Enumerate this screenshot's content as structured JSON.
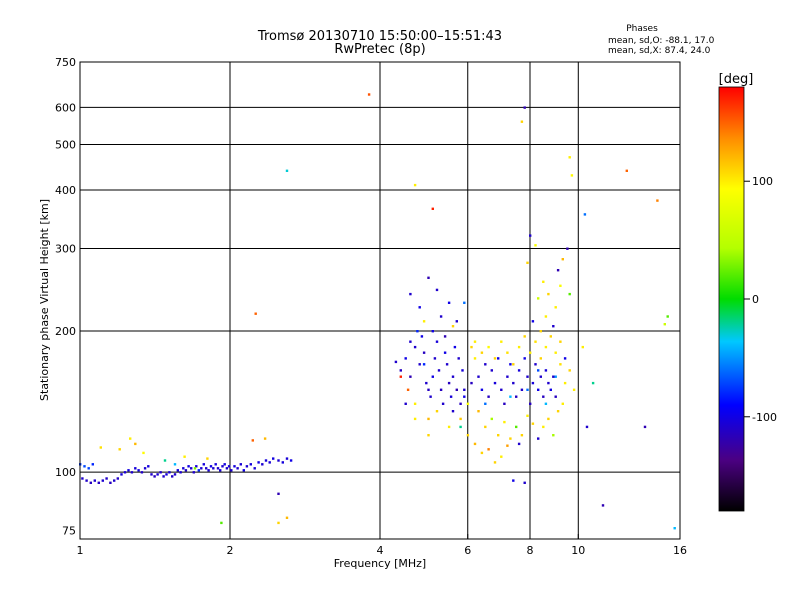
{
  "chart_data": {
    "type": "scatter",
    "title_lines": [
      "Tromsø 20130710 15:50:00–15:51:43",
      "RwPretec (8p)"
    ],
    "phases": {
      "heading": "Phases",
      "line_o": "mean, sd,O: -88.1, 17.0",
      "line_x": "mean, sd,X:  87.4, 24.0"
    },
    "xlabel": "Frequency [MHz]",
    "ylabel": "Stationary phase Virtual Height [km]",
    "x_scale": "log",
    "y_scale": "log",
    "xlim": [
      1,
      16
    ],
    "ylim": [
      72,
      750
    ],
    "x_ticks": [
      1,
      2,
      4,
      6,
      8,
      10,
      16
    ],
    "y_ticks": [
      75,
      100,
      200,
      300,
      400,
      500,
      600,
      750
    ],
    "grid": true,
    "colorbar": {
      "label": "[deg]",
      "range": [
        -180,
        180
      ],
      "ticks": [
        100,
        0,
        -100
      ]
    },
    "points": [
      {
        "x": 1.0,
        "y": 104,
        "c": -75
      },
      {
        "x": 1.02,
        "y": 103,
        "c": -70
      },
      {
        "x": 1.04,
        "y": 102,
        "c": -72
      },
      {
        "x": 1.06,
        "y": 104,
        "c": -80
      },
      {
        "x": 1.01,
        "y": 97,
        "c": -110
      },
      {
        "x": 1.03,
        "y": 96,
        "c": -112
      },
      {
        "x": 1.05,
        "y": 95,
        "c": -115
      },
      {
        "x": 1.07,
        "y": 96,
        "c": -110
      },
      {
        "x": 1.09,
        "y": 95,
        "c": -113
      },
      {
        "x": 1.11,
        "y": 96,
        "c": -108
      },
      {
        "x": 1.13,
        "y": 97,
        "c": -112
      },
      {
        "x": 1.15,
        "y": 95,
        "c": -115
      },
      {
        "x": 1.17,
        "y": 96,
        "c": -110
      },
      {
        "x": 1.19,
        "y": 97,
        "c": -112
      },
      {
        "x": 1.21,
        "y": 99,
        "c": -105
      },
      {
        "x": 1.23,
        "y": 100,
        "c": -108
      },
      {
        "x": 1.25,
        "y": 101,
        "c": -102
      },
      {
        "x": 1.27,
        "y": 100,
        "c": -110
      },
      {
        "x": 1.29,
        "y": 102,
        "c": -105
      },
      {
        "x": 1.31,
        "y": 101,
        "c": -100
      },
      {
        "x": 1.33,
        "y": 100,
        "c": -112
      },
      {
        "x": 1.35,
        "y": 102,
        "c": -108
      },
      {
        "x": 1.37,
        "y": 103,
        "c": -104
      },
      {
        "x": 1.39,
        "y": 99,
        "c": -110
      },
      {
        "x": 1.41,
        "y": 98,
        "c": -115
      },
      {
        "x": 1.43,
        "y": 99,
        "c": -108
      },
      {
        "x": 1.45,
        "y": 100,
        "c": -112
      },
      {
        "x": 1.47,
        "y": 98,
        "c": -110
      },
      {
        "x": 1.49,
        "y": 99,
        "c": -105
      },
      {
        "x": 1.51,
        "y": 100,
        "c": -108
      },
      {
        "x": 1.53,
        "y": 98,
        "c": -112
      },
      {
        "x": 1.55,
        "y": 99,
        "c": -110
      },
      {
        "x": 1.57,
        "y": 101,
        "c": -104
      },
      {
        "x": 1.59,
        "y": 100,
        "c": -108
      },
      {
        "x": 1.61,
        "y": 102,
        "c": -106
      },
      {
        "x": 1.63,
        "y": 101,
        "c": -110
      },
      {
        "x": 1.65,
        "y": 103,
        "c": -102
      },
      {
        "x": 1.67,
        "y": 102,
        "c": -108
      },
      {
        "x": 1.69,
        "y": 100,
        "c": -112
      },
      {
        "x": 1.71,
        "y": 103,
        "c": -105
      },
      {
        "x": 1.73,
        "y": 101,
        "c": -80
      },
      {
        "x": 1.75,
        "y": 102,
        "c": -108
      },
      {
        "x": 1.77,
        "y": 104,
        "c": -104
      },
      {
        "x": 1.79,
        "y": 102,
        "c": -110
      },
      {
        "x": 1.81,
        "y": 101,
        "c": -106
      },
      {
        "x": 1.83,
        "y": 103,
        "c": -102
      },
      {
        "x": 1.85,
        "y": 102,
        "c": -108
      },
      {
        "x": 1.87,
        "y": 104,
        "c": -104
      },
      {
        "x": 1.89,
        "y": 102,
        "c": -110
      },
      {
        "x": 1.91,
        "y": 101,
        "c": -106
      },
      {
        "x": 1.93,
        "y": 103,
        "c": -108
      },
      {
        "x": 1.95,
        "y": 104,
        "c": -104
      },
      {
        "x": 1.97,
        "y": 102,
        "c": -110
      },
      {
        "x": 1.99,
        "y": 103,
        "c": -106
      },
      {
        "x": 2.01,
        "y": 101,
        "c": -108
      },
      {
        "x": 2.04,
        "y": 103,
        "c": -104
      },
      {
        "x": 2.07,
        "y": 102,
        "c": -110
      },
      {
        "x": 2.1,
        "y": 104,
        "c": -106
      },
      {
        "x": 2.13,
        "y": 101,
        "c": -100
      },
      {
        "x": 2.16,
        "y": 103,
        "c": -108
      },
      {
        "x": 2.2,
        "y": 104,
        "c": -104
      },
      {
        "x": 2.24,
        "y": 102,
        "c": -106
      },
      {
        "x": 2.28,
        "y": 105,
        "c": -102
      },
      {
        "x": 2.32,
        "y": 104,
        "c": -108
      },
      {
        "x": 2.36,
        "y": 106,
        "c": -104
      },
      {
        "x": 2.4,
        "y": 105,
        "c": -106
      },
      {
        "x": 2.44,
        "y": 107,
        "c": -102
      },
      {
        "x": 2.5,
        "y": 106,
        "c": -108
      },
      {
        "x": 2.55,
        "y": 105,
        "c": -104
      },
      {
        "x": 2.6,
        "y": 107,
        "c": -106
      },
      {
        "x": 2.65,
        "y": 106,
        "c": -100
      },
      {
        "x": 1.2,
        "y": 112,
        "c": 110
      },
      {
        "x": 1.26,
        "y": 118,
        "c": 100
      },
      {
        "x": 1.29,
        "y": 115,
        "c": 120
      },
      {
        "x": 1.1,
        "y": 113,
        "c": 105
      },
      {
        "x": 1.34,
        "y": 110,
        "c": 95
      },
      {
        "x": 1.62,
        "y": 108,
        "c": 100
      },
      {
        "x": 1.8,
        "y": 107,
        "c": 110
      },
      {
        "x": 1.48,
        "y": 106,
        "c": -20
      },
      {
        "x": 1.55,
        "y": 104,
        "c": -40
      },
      {
        "x": 1.7,
        "y": 102,
        "c": 30
      },
      {
        "x": 1.92,
        "y": 78,
        "c": 20
      },
      {
        "x": 2.22,
        "y": 117,
        "c": 150
      },
      {
        "x": 2.35,
        "y": 118,
        "c": 120
      },
      {
        "x": 2.5,
        "y": 90,
        "c": -120
      },
      {
        "x": 2.5,
        "y": 78,
        "c": 110
      },
      {
        "x": 2.6,
        "y": 80,
        "c": 120
      },
      {
        "x": 2.25,
        "y": 218,
        "c": 150
      },
      {
        "x": 2.6,
        "y": 440,
        "c": -30
      },
      {
        "x": 3.8,
        "y": 640,
        "c": 155
      },
      {
        "x": 4.7,
        "y": 410,
        "c": 100
      },
      {
        "x": 5.1,
        "y": 365,
        "c": 170
      },
      {
        "x": 7.7,
        "y": 560,
        "c": 110
      },
      {
        "x": 7.8,
        "y": 600,
        "c": -120
      },
      {
        "x": 9.6,
        "y": 470,
        "c": 100
      },
      {
        "x": 9.7,
        "y": 430,
        "c": 95
      },
      {
        "x": 12.5,
        "y": 440,
        "c": 150
      },
      {
        "x": 14.4,
        "y": 380,
        "c": 140
      },
      {
        "x": 10.3,
        "y": 355,
        "c": -60
      },
      {
        "x": 15.1,
        "y": 215,
        "c": 20
      },
      {
        "x": 14.9,
        "y": 207,
        "c": 60
      },
      {
        "x": 15.6,
        "y": 76,
        "c": -40
      },
      {
        "x": 11.2,
        "y": 85,
        "c": -120
      },
      {
        "x": 10.7,
        "y": 155,
        "c": -20
      },
      {
        "x": 10.2,
        "y": 185,
        "c": 100
      },
      {
        "x": 13.6,
        "y": 125,
        "c": -120
      },
      {
        "x": 10.4,
        "y": 125,
        "c": -110
      },
      {
        "x": 9.5,
        "y": 300,
        "c": -120
      },
      {
        "x": 8.0,
        "y": 320,
        "c": -110
      },
      {
        "x": 8.2,
        "y": 305,
        "c": 90
      },
      {
        "x": 9.1,
        "y": 270,
        "c": -120
      },
      {
        "x": 9.3,
        "y": 285,
        "c": 120
      },
      {
        "x": 7.9,
        "y": 280,
        "c": 110
      },
      {
        "x": 8.3,
        "y": 235,
        "c": 60
      },
      {
        "x": 9.6,
        "y": 240,
        "c": 20
      },
      {
        "x": 8.1,
        "y": 210,
        "c": -100
      },
      {
        "x": 7.8,
        "y": 95,
        "c": -110
      },
      {
        "x": 7.4,
        "y": 96,
        "c": -100
      },
      {
        "x": 4.3,
        "y": 172,
        "c": -110
      },
      {
        "x": 4.4,
        "y": 165,
        "c": -115
      },
      {
        "x": 4.5,
        "y": 175,
        "c": -100
      },
      {
        "x": 4.6,
        "y": 160,
        "c": -120
      },
      {
        "x": 4.55,
        "y": 150,
        "c": 150
      },
      {
        "x": 4.7,
        "y": 185,
        "c": -110
      },
      {
        "x": 4.75,
        "y": 200,
        "c": -80
      },
      {
        "x": 4.8,
        "y": 170,
        "c": -110
      },
      {
        "x": 4.85,
        "y": 195,
        "c": -100
      },
      {
        "x": 4.9,
        "y": 180,
        "c": -115
      },
      {
        "x": 4.95,
        "y": 155,
        "c": -110
      },
      {
        "x": 5.0,
        "y": 150,
        "c": -115
      },
      {
        "x": 5.05,
        "y": 145,
        "c": -110
      },
      {
        "x": 5.1,
        "y": 160,
        "c": -100
      },
      {
        "x": 5.15,
        "y": 175,
        "c": -110
      },
      {
        "x": 5.2,
        "y": 190,
        "c": -105
      },
      {
        "x": 5.25,
        "y": 165,
        "c": -110
      },
      {
        "x": 5.3,
        "y": 150,
        "c": -115
      },
      {
        "x": 5.35,
        "y": 140,
        "c": -110
      },
      {
        "x": 5.4,
        "y": 180,
        "c": -100
      },
      {
        "x": 5.45,
        "y": 170,
        "c": -110
      },
      {
        "x": 5.5,
        "y": 155,
        "c": -115
      },
      {
        "x": 5.55,
        "y": 145,
        "c": -105
      },
      {
        "x": 5.6,
        "y": 160,
        "c": -110
      },
      {
        "x": 5.65,
        "y": 185,
        "c": -100
      },
      {
        "x": 5.7,
        "y": 150,
        "c": -120
      },
      {
        "x": 5.75,
        "y": 175,
        "c": -110
      },
      {
        "x": 5.8,
        "y": 140,
        "c": -115
      },
      {
        "x": 5.85,
        "y": 165,
        "c": -105
      },
      {
        "x": 5.9,
        "y": 150,
        "c": -110
      },
      {
        "x": 4.6,
        "y": 240,
        "c": -110
      },
      {
        "x": 4.8,
        "y": 225,
        "c": -100
      },
      {
        "x": 5.0,
        "y": 260,
        "c": -120
      },
      {
        "x": 5.3,
        "y": 215,
        "c": -110
      },
      {
        "x": 5.5,
        "y": 230,
        "c": -100
      },
      {
        "x": 5.7,
        "y": 210,
        "c": -110
      },
      {
        "x": 5.9,
        "y": 230,
        "c": -60
      },
      {
        "x": 5.2,
        "y": 245,
        "c": -110
      },
      {
        "x": 4.9,
        "y": 210,
        "c": 100
      },
      {
        "x": 5.6,
        "y": 205,
        "c": 110
      },
      {
        "x": 4.7,
        "y": 140,
        "c": 100
      },
      {
        "x": 5.0,
        "y": 130,
        "c": 120
      },
      {
        "x": 5.2,
        "y": 135,
        "c": 110
      },
      {
        "x": 5.5,
        "y": 125,
        "c": 100
      },
      {
        "x": 5.8,
        "y": 130,
        "c": 115
      },
      {
        "x": 6.0,
        "y": 140,
        "c": 90
      },
      {
        "x": 6.1,
        "y": 185,
        "c": 110
      },
      {
        "x": 6.2,
        "y": 175,
        "c": 100
      },
      {
        "x": 6.3,
        "y": 160,
        "c": -110
      },
      {
        "x": 6.4,
        "y": 150,
        "c": -100
      },
      {
        "x": 6.5,
        "y": 170,
        "c": -110
      },
      {
        "x": 6.6,
        "y": 145,
        "c": -115
      },
      {
        "x": 6.7,
        "y": 165,
        "c": -110
      },
      {
        "x": 6.8,
        "y": 155,
        "c": -105
      },
      {
        "x": 6.9,
        "y": 175,
        "c": -100
      },
      {
        "x": 7.0,
        "y": 150,
        "c": -110
      },
      {
        "x": 7.1,
        "y": 140,
        "c": -115
      },
      {
        "x": 7.2,
        "y": 160,
        "c": -110
      },
      {
        "x": 7.3,
        "y": 170,
        "c": -100
      },
      {
        "x": 7.4,
        "y": 155,
        "c": -110
      },
      {
        "x": 7.5,
        "y": 145,
        "c": -115
      },
      {
        "x": 7.6,
        "y": 165,
        "c": -105
      },
      {
        "x": 7.7,
        "y": 150,
        "c": -110
      },
      {
        "x": 7.8,
        "y": 175,
        "c": -100
      },
      {
        "x": 7.9,
        "y": 160,
        "c": -110
      },
      {
        "x": 8.0,
        "y": 140,
        "c": -115
      },
      {
        "x": 8.1,
        "y": 155,
        "c": -105
      },
      {
        "x": 8.2,
        "y": 170,
        "c": -110
      },
      {
        "x": 8.3,
        "y": 150,
        "c": -100
      },
      {
        "x": 8.4,
        "y": 160,
        "c": -110
      },
      {
        "x": 8.5,
        "y": 145,
        "c": -115
      },
      {
        "x": 8.6,
        "y": 165,
        "c": -105
      },
      {
        "x": 8.7,
        "y": 155,
        "c": -110
      },
      {
        "x": 8.8,
        "y": 150,
        "c": -100
      },
      {
        "x": 8.9,
        "y": 160,
        "c": -110
      },
      {
        "x": 9.0,
        "y": 145,
        "c": -115
      },
      {
        "x": 6.2,
        "y": 190,
        "c": 100
      },
      {
        "x": 6.4,
        "y": 180,
        "c": 110
      },
      {
        "x": 6.6,
        "y": 185,
        "c": 95
      },
      {
        "x": 6.8,
        "y": 175,
        "c": 110
      },
      {
        "x": 7.0,
        "y": 190,
        "c": 100
      },
      {
        "x": 7.2,
        "y": 180,
        "c": 105
      },
      {
        "x": 7.4,
        "y": 170,
        "c": 110
      },
      {
        "x": 7.6,
        "y": 185,
        "c": 100
      },
      {
        "x": 7.8,
        "y": 195,
        "c": 110
      },
      {
        "x": 8.0,
        "y": 180,
        "c": 100
      },
      {
        "x": 8.2,
        "y": 190,
        "c": 105
      },
      {
        "x": 8.4,
        "y": 175,
        "c": 110
      },
      {
        "x": 8.6,
        "y": 185,
        "c": 100
      },
      {
        "x": 8.8,
        "y": 195,
        "c": 110
      },
      {
        "x": 9.0,
        "y": 180,
        "c": 100
      },
      {
        "x": 9.2,
        "y": 170,
        "c": 105
      },
      {
        "x": 6.3,
        "y": 135,
        "c": 120
      },
      {
        "x": 6.5,
        "y": 125,
        "c": 110
      },
      {
        "x": 6.7,
        "y": 130,
        "c": 40
      },
      {
        "x": 6.9,
        "y": 120,
        "c": 110
      },
      {
        "x": 7.1,
        "y": 128,
        "c": 100
      },
      {
        "x": 7.3,
        "y": 118,
        "c": 110
      },
      {
        "x": 7.5,
        "y": 125,
        "c": 20
      },
      {
        "x": 7.7,
        "y": 120,
        "c": 110
      },
      {
        "x": 7.9,
        "y": 132,
        "c": 100
      },
      {
        "x": 8.1,
        "y": 127,
        "c": 110
      },
      {
        "x": 8.3,
        "y": 118,
        "c": -110
      },
      {
        "x": 8.5,
        "y": 125,
        "c": 100
      },
      {
        "x": 8.7,
        "y": 130,
        "c": 110
      },
      {
        "x": 8.9,
        "y": 120,
        "c": 40
      },
      {
        "x": 9.1,
        "y": 135,
        "c": 110
      },
      {
        "x": 9.3,
        "y": 140,
        "c": 100
      },
      {
        "x": 6.4,
        "y": 110,
        "c": 110
      },
      {
        "x": 6.6,
        "y": 112,
        "c": 140
      },
      {
        "x": 7.0,
        "y": 108,
        "c": 100
      },
      {
        "x": 7.2,
        "y": 114,
        "c": 130
      },
      {
        "x": 6.8,
        "y": 105,
        "c": 110
      },
      {
        "x": 7.6,
        "y": 115,
        "c": -110
      },
      {
        "x": 6.2,
        "y": 115,
        "c": 120
      },
      {
        "x": 6.0,
        "y": 120,
        "c": 110
      },
      {
        "x": 9.4,
        "y": 155,
        "c": 100
      },
      {
        "x": 9.6,
        "y": 165,
        "c": 110
      },
      {
        "x": 9.8,
        "y": 150,
        "c": 100
      },
      {
        "x": 9.4,
        "y": 175,
        "c": -100
      },
      {
        "x": 9.2,
        "y": 190,
        "c": 110
      },
      {
        "x": 8.9,
        "y": 205,
        "c": -110
      },
      {
        "x": 8.6,
        "y": 215,
        "c": 100
      },
      {
        "x": 8.4,
        "y": 200,
        "c": 110
      },
      {
        "x": 9.0,
        "y": 225,
        "c": 100
      },
      {
        "x": 8.7,
        "y": 240,
        "c": 110
      },
      {
        "x": 8.5,
        "y": 255,
        "c": 100
      },
      {
        "x": 9.2,
        "y": 250,
        "c": 90
      },
      {
        "x": 5.0,
        "y": 120,
        "c": 110
      },
      {
        "x": 4.7,
        "y": 130,
        "c": 100
      },
      {
        "x": 4.5,
        "y": 140,
        "c": -110
      },
      {
        "x": 4.4,
        "y": 160,
        "c": 170
      },
      {
        "x": 5.4,
        "y": 195,
        "c": -120
      },
      {
        "x": 5.1,
        "y": 200,
        "c": -100
      },
      {
        "x": 4.6,
        "y": 190,
        "c": -110
      },
      {
        "x": 4.9,
        "y": 170,
        "c": -80
      },
      {
        "x": 5.6,
        "y": 135,
        "c": -110
      },
      {
        "x": 5.9,
        "y": 145,
        "c": -100
      },
      {
        "x": 6.1,
        "y": 155,
        "c": -115
      },
      {
        "x": 5.8,
        "y": 125,
        "c": -20
      },
      {
        "x": 6.5,
        "y": 140,
        "c": -60
      },
      {
        "x": 7.3,
        "y": 145,
        "c": -40
      },
      {
        "x": 7.9,
        "y": 150,
        "c": -60
      },
      {
        "x": 8.6,
        "y": 140,
        "c": -40
      },
      {
        "x": 9.0,
        "y": 160,
        "c": -50
      },
      {
        "x": 8.3,
        "y": 165,
        "c": -70
      }
    ]
  }
}
